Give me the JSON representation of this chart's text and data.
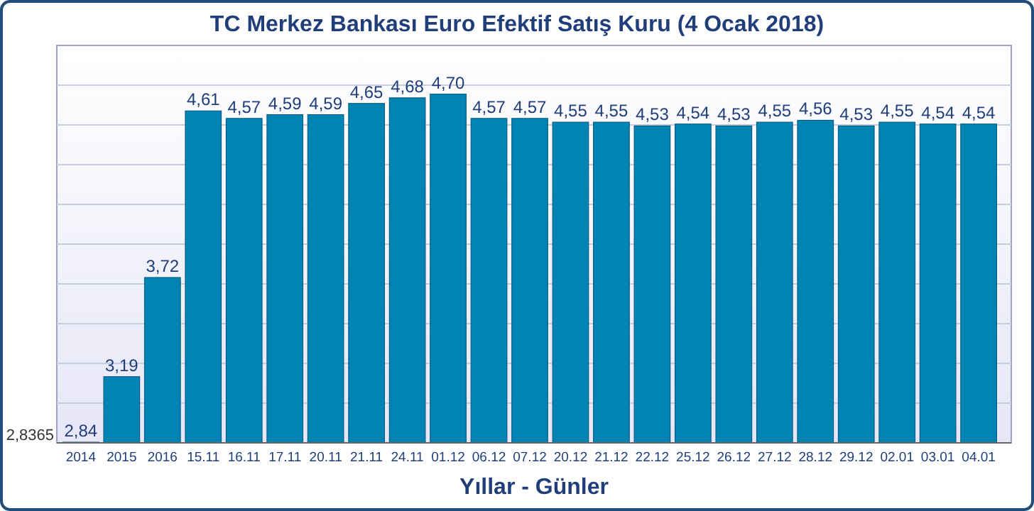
{
  "chart_data": {
    "type": "bar",
    "title": "TC Merkez Bankası Euro Efektif Satış Kuru (4 Ocak 2018)",
    "xlabel": "Yıllar - Günler",
    "categories": [
      "2014",
      "2015",
      "2016",
      "15.11",
      "16.11",
      "17.11",
      "20.11",
      "21.11",
      "24.11",
      "01.12",
      "06.12",
      "07.12",
      "20.12",
      "21.12",
      "22.12",
      "25.12",
      "26.12",
      "27.12",
      "28.12",
      "29.12",
      "02.01",
      "03.01",
      "04.01"
    ],
    "values": [
      2.84,
      3.19,
      3.72,
      4.61,
      4.57,
      4.59,
      4.59,
      4.65,
      4.68,
      4.7,
      4.57,
      4.57,
      4.55,
      4.55,
      4.53,
      4.54,
      4.53,
      4.55,
      4.56,
      4.53,
      4.55,
      4.54,
      4.54
    ],
    "value_labels": [
      "2,84",
      "3,19",
      "3,72",
      "4,61",
      "4,57",
      "4,59",
      "4,59",
      "4,65",
      "4,68",
      "4,70",
      "4,57",
      "4,57",
      "4,55",
      "4,55",
      "4,53",
      "4,54",
      "4,53",
      "4,55",
      "4,56",
      "4,53",
      "4,55",
      "4,54",
      "4,54"
    ],
    "color": "#0084b4",
    "ylim": [
      2.8365,
      4.96
    ],
    "annotations": [
      "2,8365"
    ],
    "grid": "y"
  }
}
